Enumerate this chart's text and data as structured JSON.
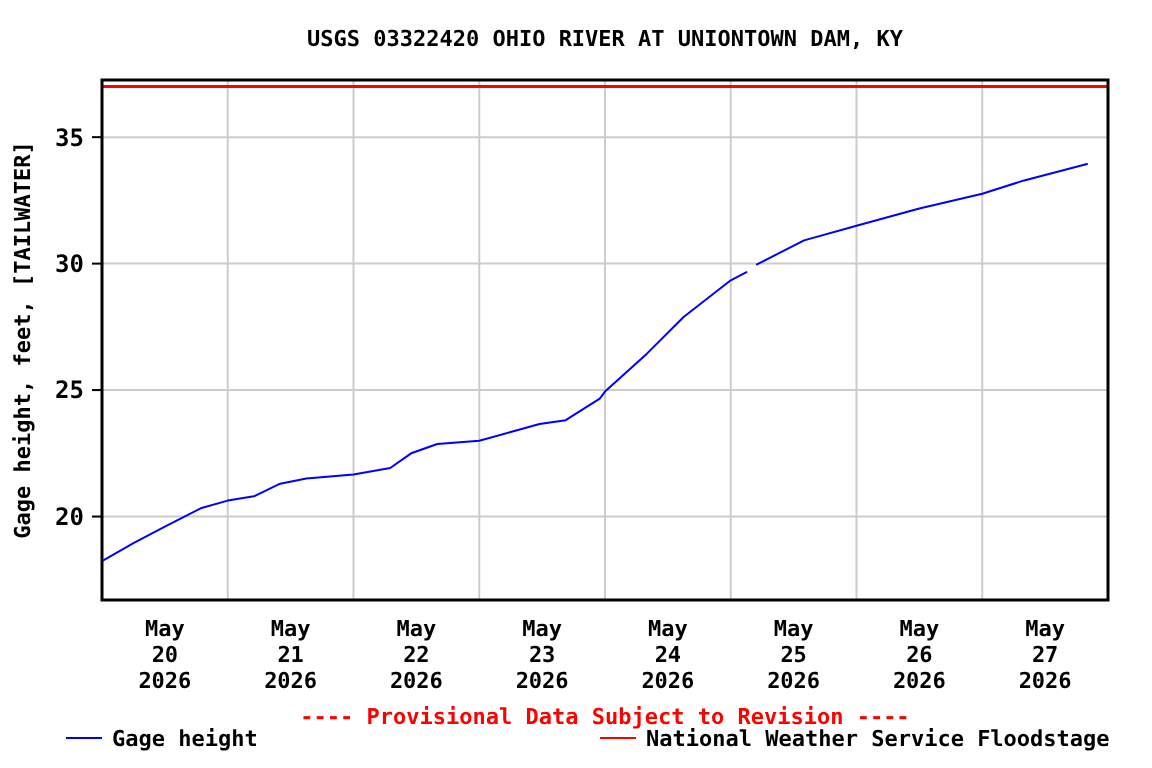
{
  "chart_data": {
    "type": "line",
    "title": "USGS 03322420 OHIO RIVER AT UNIONTOWN DAM, KY",
    "ylabel": "Gage height, feet, [TAILWATER]",
    "annotations": [
      "---- Provisional Data Subject to Revision ----"
    ],
    "x": [
      "2026-05-20T00:00",
      "2026-05-20T06:00",
      "2026-05-20T12:00",
      "2026-05-20T19:00",
      "2026-05-21T00:00",
      "2026-05-21T05:00",
      "2026-05-21T10:00",
      "2026-05-21T15:00",
      "2026-05-22T00:00",
      "2026-05-22T07:00",
      "2026-05-22T11:00",
      "2026-05-22T16:00",
      "2026-05-23T00:00",
      "2026-05-23T06:00",
      "2026-05-23T11:30",
      "2026-05-23T16:30",
      "2026-05-23T23:00",
      "2026-05-24T00:00",
      "2026-05-24T08:00",
      "2026-05-24T15:00",
      "2026-05-25T00:00",
      "2026-05-25T03:00",
      "2026-05-25T04:00",
      "2026-05-25T05:00",
      "2026-05-25T14:00",
      "2026-05-26T00:00",
      "2026-05-26T12:00",
      "2026-05-27T00:00",
      "2026-05-27T08:00",
      "2026-05-27T20:00"
    ],
    "series": [
      {
        "name": "Gage height",
        "color": "#0000ff",
        "values": [
          18.24,
          18.95,
          19.6,
          20.34,
          20.63,
          20.8,
          21.3,
          21.5,
          21.66,
          21.92,
          22.5,
          22.87,
          23.0,
          23.34,
          23.66,
          23.81,
          24.66,
          24.94,
          26.44,
          27.89,
          29.34,
          29.66,
          null,
          29.97,
          30.92,
          31.5,
          32.18,
          32.76,
          33.29,
          33.94
        ]
      }
    ],
    "ref_lines": [
      {
        "axis": "y",
        "value": 37,
        "label": "National Weather Service Floodstage",
        "color": "#ff0000"
      }
    ],
    "xlim": [
      "2026-05-20T00:00",
      "2026-05-28T00:00"
    ],
    "xticks": [
      {
        "value": "2026-05-20T00:00",
        "label": null
      },
      {
        "value": "2026-05-20T12:00",
        "label": "May\n20\n2026"
      },
      {
        "value": "2026-05-21T00:00",
        "label": null
      },
      {
        "value": "2026-05-21T12:00",
        "label": "May\n21\n2026"
      },
      {
        "value": "2026-05-22T00:00",
        "label": null
      },
      {
        "value": "2026-05-22T12:00",
        "label": "May\n22\n2026"
      },
      {
        "value": "2026-05-23T00:00",
        "label": null
      },
      {
        "value": "2026-05-23T12:00",
        "label": "May\n23\n2026"
      },
      {
        "value": "2026-05-24T00:00",
        "label": null
      },
      {
        "value": "2026-05-24T12:00",
        "label": "May\n24\n2026"
      },
      {
        "value": "2026-05-25T00:00",
        "label": null
      },
      {
        "value": "2026-05-25T12:00",
        "label": "May\n25\n2026"
      },
      {
        "value": "2026-05-26T00:00",
        "label": null
      },
      {
        "value": "2026-05-26T12:00",
        "label": "May\n26\n2026"
      },
      {
        "value": "2026-05-27T00:00",
        "label": null
      },
      {
        "value": "2026-05-27T12:00",
        "label": "May\n27\n2026"
      },
      {
        "value": "2026-05-28T00:00",
        "label": null
      }
    ],
    "ylim": [
      16.7,
      37.26
    ],
    "yticks": [
      20,
      25,
      30,
      35
    ],
    "grid": true,
    "legend": "bottom",
    "line_style": "solid"
  }
}
